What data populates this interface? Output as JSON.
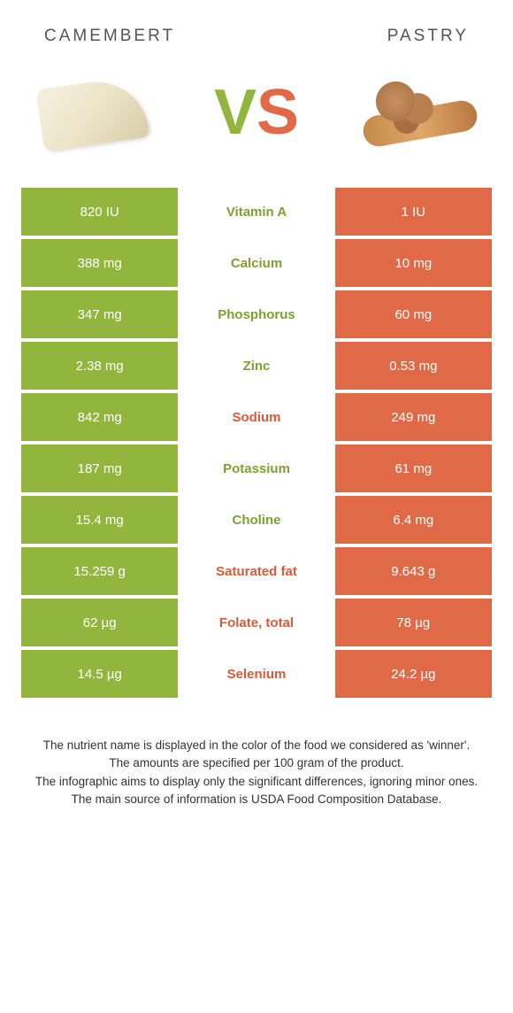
{
  "header": {
    "left_title": "CAMEMBERT",
    "right_title": "PASTRY"
  },
  "vs": {
    "v": "V",
    "s": "S"
  },
  "colors": {
    "green": "#92b53e",
    "orange": "#e06a47",
    "mid_green": "#7ea030",
    "mid_orange": "#d85a38",
    "background": "#ffffff"
  },
  "rows": [
    {
      "left": "820 IU",
      "label": "Vitamin A",
      "right": "1 IU",
      "winner": "green"
    },
    {
      "left": "388 mg",
      "label": "Calcium",
      "right": "10 mg",
      "winner": "green"
    },
    {
      "left": "347 mg",
      "label": "Phosphorus",
      "right": "60 mg",
      "winner": "green"
    },
    {
      "left": "2.38 mg",
      "label": "Zinc",
      "right": "0.53 mg",
      "winner": "green"
    },
    {
      "left": "842 mg",
      "label": "Sodium",
      "right": "249 mg",
      "winner": "orange"
    },
    {
      "left": "187 mg",
      "label": "Potassium",
      "right": "61 mg",
      "winner": "green"
    },
    {
      "left": "15.4 mg",
      "label": "Choline",
      "right": "6.4 mg",
      "winner": "green"
    },
    {
      "left": "15.259 g",
      "label": "Saturated fat",
      "right": "9.643 g",
      "winner": "orange"
    },
    {
      "left": "62 µg",
      "label": "Folate, total",
      "right": "78 µg",
      "winner": "orange"
    },
    {
      "left": "14.5 µg",
      "label": "Selenium",
      "right": "24.2 µg",
      "winner": "orange"
    }
  ],
  "footer": {
    "line1": "The nutrient name is displayed in the color of the food we considered as 'winner'.",
    "line2": "The amounts are specified per 100 gram of the product.",
    "line3": "The infographic aims to display only the significant differences, ignoring minor ones.",
    "line4": "The main source of information is USDA Food Composition Database."
  }
}
